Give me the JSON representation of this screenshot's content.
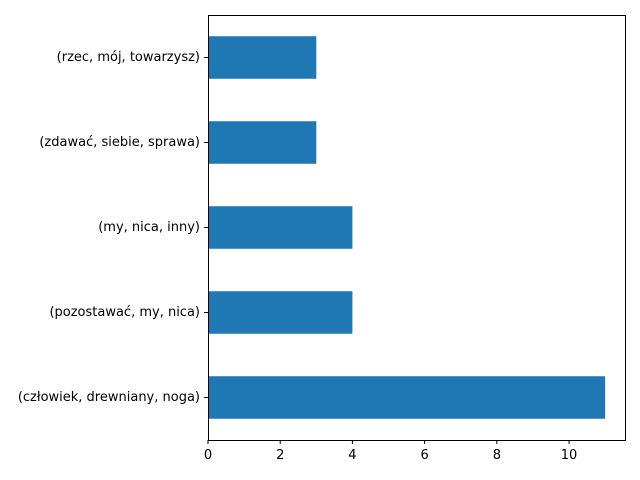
{
  "chart_data": {
    "type": "bar",
    "orientation": "horizontal",
    "categories": [
      "(rzec, mój, towarzysz)",
      "(zdawać, siebie, sprawa)",
      "(my, nica, inny)",
      "(pozostawać, my, nica)",
      "(człowiek, drewniany, noga)"
    ],
    "values": [
      3,
      3,
      4,
      4,
      11
    ],
    "title": "",
    "xlabel": "",
    "ylabel": "",
    "xlim": [
      0,
      11.55
    ],
    "xticks": [
      0,
      2,
      4,
      6,
      8,
      10
    ],
    "grid": false,
    "legend": "none",
    "bar_color": "#1f77b4"
  }
}
